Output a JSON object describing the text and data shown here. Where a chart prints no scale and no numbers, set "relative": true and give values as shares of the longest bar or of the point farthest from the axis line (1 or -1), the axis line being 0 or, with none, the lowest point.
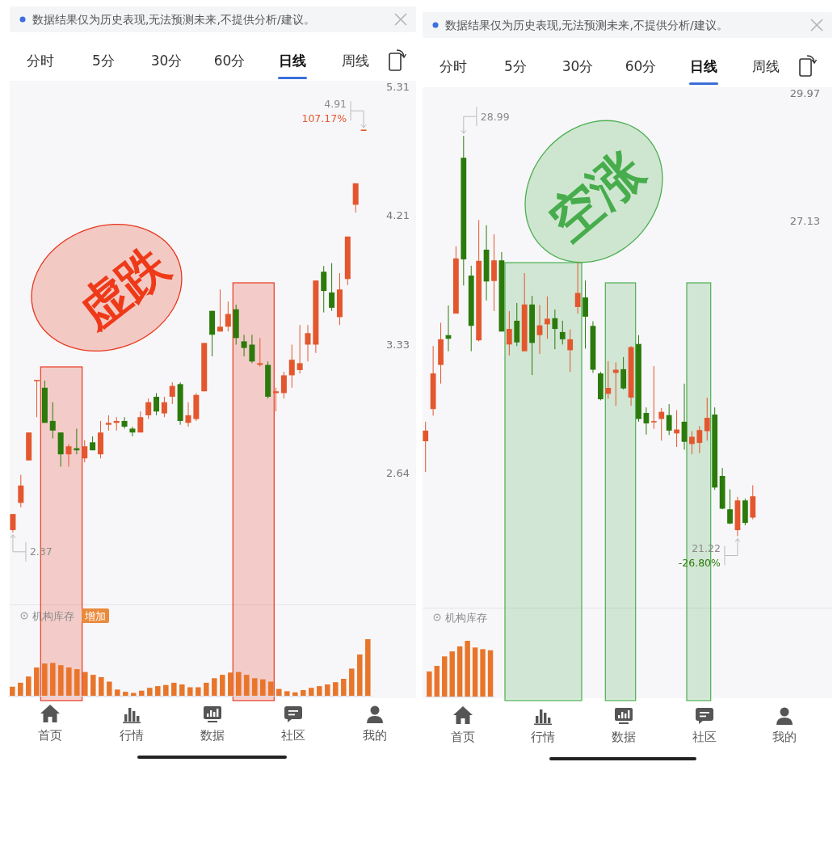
{
  "chart_data": [
    {
      "type": "other",
      "annotations": [
        "数据结果仅为历史表现,无法预测未来,不提供分析/建议。",
        "分时",
        "5分",
        "30分",
        "60分",
        "日线",
        "周线",
        "首页",
        "行情",
        "数据",
        "社区",
        "我的"
      ]
    },
    {
      "type": "candlestick",
      "categories": [
        null,
        null,
        null,
        null,
        null,
        null,
        null,
        null,
        null,
        null,
        null,
        null,
        null,
        null,
        null,
        null,
        null,
        null,
        null,
        null,
        null,
        null,
        null,
        null,
        null,
        null,
        null,
        null,
        null,
        null,
        null,
        null,
        null,
        null,
        null,
        null,
        null,
        null,
        null,
        null,
        null,
        null,
        null,
        null,
        null
      ],
      "ohlc": [
        [
          2.38,
          2.45,
          2.37,
          2.45
        ],
        [
          2.5,
          2.63,
          2.48,
          2.58
        ],
        [
          2.7,
          2.84,
          2.7,
          2.84
        ],
        [
          3.12,
          3.12,
          2.92,
          3.12
        ],
        [
          3.08,
          3.12,
          2.89,
          2.89
        ],
        [
          2.9,
          3.0,
          2.81,
          2.85
        ],
        [
          2.84,
          2.84,
          2.67,
          2.73
        ],
        [
          2.73,
          2.78,
          2.67,
          2.77
        ],
        [
          2.76,
          2.86,
          2.73,
          2.75
        ],
        [
          2.71,
          2.8,
          2.69,
          2.77
        ],
        [
          2.79,
          2.82,
          2.75,
          2.75
        ],
        [
          2.73,
          2.9,
          2.71,
          2.84
        ],
        [
          2.88,
          2.93,
          2.85,
          2.89
        ],
        [
          2.89,
          2.92,
          2.85,
          2.9
        ],
        [
          2.9,
          2.92,
          2.86,
          2.87
        ],
        [
          2.86,
          2.87,
          2.82,
          2.84
        ],
        [
          2.84,
          2.95,
          2.84,
          2.92
        ],
        [
          2.93,
          3.02,
          2.91,
          3.0
        ],
        [
          3.03,
          3.05,
          2.93,
          2.95
        ],
        [
          2.94,
          3.03,
          2.92,
          3.0
        ],
        [
          3.03,
          3.11,
          2.99,
          3.09
        ],
        [
          3.1,
          3.11,
          2.88,
          2.9
        ],
        [
          2.89,
          3.0,
          2.87,
          2.93
        ],
        [
          2.91,
          3.05,
          2.9,
          3.04
        ],
        [
          3.06,
          3.34,
          3.06,
          3.34
        ],
        [
          3.54,
          3.54,
          3.26,
          3.39
        ],
        [
          3.41,
          3.68,
          3.41,
          3.44
        ],
        [
          3.44,
          3.6,
          3.41,
          3.52
        ],
        [
          3.55,
          3.58,
          3.33,
          3.37
        ],
        [
          3.35,
          3.39,
          3.26,
          3.31
        ],
        [
          3.33,
          3.39,
          3.22,
          3.23
        ],
        [
          3.21,
          3.37,
          3.2,
          3.22
        ],
        [
          3.21,
          3.23,
          3.02,
          3.03
        ],
        [
          3.05,
          3.08,
          2.95,
          3.06
        ],
        [
          3.05,
          3.17,
          3.02,
          3.15
        ],
        [
          3.15,
          3.33,
          3.08,
          3.24
        ],
        [
          3.18,
          3.45,
          3.16,
          3.22
        ],
        [
          3.33,
          3.45,
          3.23,
          3.4
        ],
        [
          3.33,
          3.74,
          3.28,
          3.74
        ],
        [
          3.8,
          3.84,
          3.53,
          3.67
        ],
        [
          3.66,
          3.86,
          3.54,
          3.56
        ],
        [
          3.5,
          3.79,
          3.45,
          3.68
        ],
        [
          3.75,
          4.05,
          3.71,
          4.05
        ],
        [
          4.29,
          4.46,
          4.23,
          4.46
        ],
        [
          4.91,
          4.91,
          4.91,
          4.91
        ]
      ],
      "colors": [
        "#e4572e",
        "#e4572e",
        "#e4572e",
        "#e4572e",
        "#2b7a0b",
        "#2b7a0b",
        "#2b7a0b",
        "#e4572e",
        "#2b7a0b",
        "#e4572e",
        "#2b7a0b",
        "#e4572e",
        "#e4572e",
        "#e4572e",
        "#2b7a0b",
        "#2b7a0b",
        "#e4572e",
        "#e4572e",
        "#2b7a0b",
        "#e4572e",
        "#e4572e",
        "#2b7a0b",
        "#e4572e",
        "#e4572e",
        "#e4572e",
        "#2b7a0b",
        "#e4572e",
        "#e4572e",
        "#2b7a0b",
        "#2b7a0b",
        "#2b7a0b",
        "#e4572e",
        "#2b7a0b",
        "#e4572e",
        "#e4572e",
        "#e4572e",
        "#e4572e",
        "#e4572e",
        "#e4572e",
        "#2b7a0b",
        "#2b7a0b",
        "#e4572e",
        "#e4572e",
        "#e4572e",
        "#e4572e"
      ],
      "log": true,
      "ylim": [
        2.08,
        5.37
      ],
      "yticks": [
        2.64,
        3.33,
        4.21,
        5.31
      ],
      "tick_labels": "y",
      "annotations": [
        "4.91",
        "2.37",
        "107.17%",
        "虚跌"
      ]
    },
    {
      "type": "bar",
      "title": "机构库存",
      "categories": [
        null,
        null,
        null,
        null,
        null,
        null,
        null,
        null,
        null,
        null,
        null,
        null,
        null,
        null,
        null,
        null,
        null,
        null,
        null,
        null,
        null,
        null,
        null,
        null,
        null,
        null,
        null,
        null,
        null,
        null,
        null,
        null,
        null,
        null,
        null,
        null,
        null,
        null,
        null,
        null,
        null,
        null,
        null,
        null,
        null
      ],
      "values": [
        0.16,
        0.23,
        0.34,
        0.5,
        0.57,
        0.58,
        0.54,
        0.5,
        0.47,
        0.42,
        0.37,
        0.33,
        0.25,
        0.11,
        0.07,
        0.05,
        0.09,
        0.14,
        0.17,
        0.19,
        0.23,
        0.2,
        0.15,
        0.15,
        0.23,
        0.31,
        0.37,
        0.41,
        0.42,
        0.37,
        0.31,
        0.29,
        0.25,
        0.12,
        0.08,
        0.06,
        0.1,
        0.14,
        0.17,
        0.2,
        0.24,
        0.3,
        0.48,
        0.73,
        1
      ],
      "relative": true,
      "color": "#e8752a",
      "annotations": [
        "增加"
      ]
    },
    {
      "type": "other",
      "annotations": [
        "数据结果仅为历史表现,无法预测未来,不提供分析/建议。",
        "分时",
        "5分",
        "30分",
        "60分",
        "日线",
        "周线",
        "首页",
        "行情",
        "数据",
        "社区",
        "我的"
      ]
    },
    {
      "type": "candlestick",
      "categories": [
        null,
        null,
        null,
        null,
        null,
        null,
        null,
        null,
        null,
        null,
        null,
        null,
        null,
        null,
        null,
        null,
        null,
        null,
        null,
        null,
        null,
        null,
        null,
        null,
        null,
        null,
        null,
        null,
        null,
        null,
        null,
        null,
        null,
        null,
        null,
        null,
        null,
        null,
        null,
        null,
        null,
        null,
        null,
        null
      ],
      "ohlc": [
        [
          22.85,
          23.2,
          22.31,
          23.04
        ],
        [
          23.43,
          24.61,
          23.31,
          24.09
        ],
        [
          24.25,
          25.06,
          23.9,
          24.74
        ],
        [
          24.82,
          25.4,
          24.51,
          24.75
        ],
        [
          25.24,
          26.6,
          25.24,
          26.35
        ],
        [
          28.5,
          28.99,
          25.8,
          26.33
        ],
        [
          26.0,
          26.2,
          24.51,
          25.0
        ],
        [
          24.72,
          27.15,
          24.7,
          26.3
        ],
        [
          26.53,
          27.04,
          25.5,
          25.88
        ],
        [
          25.89,
          26.85,
          25.29,
          26.31
        ],
        [
          26.31,
          26.48,
          24.89,
          24.89
        ],
        [
          24.64,
          25.29,
          24.43,
          24.94
        ],
        [
          25.1,
          25.45,
          24.61,
          24.68
        ],
        [
          24.51,
          26.05,
          24.51,
          25.42
        ],
        [
          25.42,
          25.59,
          24.06,
          24.67
        ],
        [
          24.82,
          25.41,
          24.46,
          25.01
        ],
        [
          25.03,
          25.58,
          24.75,
          25.14
        ],
        [
          25.15,
          25.32,
          24.55,
          24.94
        ],
        [
          24.88,
          25.1,
          24.64,
          24.74
        ],
        [
          24.53,
          24.93,
          24.12,
          24.74
        ],
        [
          25.37,
          26.27,
          25.24,
          25.65
        ],
        [
          25.56,
          25.9,
          24.56,
          25.18
        ],
        [
          25.0,
          25.09,
          24.1,
          24.16
        ],
        [
          24.09,
          24.12,
          23.59,
          23.61
        ],
        [
          23.71,
          24.32,
          23.62,
          23.82
        ],
        [
          24.1,
          24.3,
          23.49,
          24.16
        ],
        [
          24.17,
          24.4,
          23.79,
          23.81
        ],
        [
          23.64,
          24.61,
          23.49,
          24.59
        ],
        [
          24.65,
          24.82,
          23.2,
          23.25
        ],
        [
          23.36,
          23.46,
          22.97,
          23.17
        ],
        [
          23.19,
          24.23,
          23.07,
          23.2
        ],
        [
          23.25,
          23.45,
          22.86,
          23.38
        ],
        [
          23.32,
          23.52,
          22.96,
          23.04
        ],
        [
          22.99,
          23.41,
          22.75,
          23.06
        ],
        [
          23.2,
          23.9,
          22.7,
          22.84
        ],
        [
          22.8,
          23.03,
          22.62,
          22.93
        ],
        [
          22.82,
          23.12,
          22.64,
          23.05
        ],
        [
          23.03,
          23.64,
          22.86,
          23.27
        ],
        [
          23.33,
          23.46,
          22.0,
          22.04
        ],
        [
          22.24,
          22.38,
          21.67,
          21.68
        ],
        [
          21.67,
          22.01,
          21.42,
          21.43
        ],
        [
          21.32,
          21.88,
          21.22,
          21.82
        ],
        [
          21.82,
          21.85,
          21.4,
          21.44
        ],
        [
          21.53,
          22.08,
          21.5,
          21.89
        ]
      ],
      "colors": [
        "#e4572e",
        "#e4572e",
        "#e4572e",
        "#2b7a0b",
        "#e4572e",
        "#2b7a0b",
        "#2b7a0b",
        "#e4572e",
        "#2b7a0b",
        "#e4572e",
        "#2b7a0b",
        "#e4572e",
        "#2b7a0b",
        "#e4572e",
        "#2b7a0b",
        "#e4572e",
        "#e4572e",
        "#2b7a0b",
        "#2b7a0b",
        "#e4572e",
        "#e4572e",
        "#2b7a0b",
        "#2b7a0b",
        "#2b7a0b",
        "#e4572e",
        "#e4572e",
        "#2b7a0b",
        "#e4572e",
        "#2b7a0b",
        "#2b7a0b",
        "#e4572e",
        "#e4572e",
        "#2b7a0b",
        "#e4572e",
        "#2b7a0b",
        "#e4572e",
        "#e4572e",
        "#e4572e",
        "#2b7a0b",
        "#2b7a0b",
        "#2b7a0b",
        "#e4572e",
        "#2b7a0b",
        "#e4572e"
      ],
      "log": true,
      "ylim": [
        20.07,
        30.11
      ],
      "yticks": [
        27.13,
        29.97
      ],
      "tick_labels": "y",
      "annotations": [
        "28.99",
        "21.22",
        "-26.80%",
        "空涨"
      ]
    },
    {
      "type": "bar",
      "title": "机构库存",
      "categories": [
        null,
        null,
        null,
        null,
        null,
        null,
        null,
        null,
        null
      ],
      "values": [
        0.45,
        0.55,
        0.72,
        0.81,
        0.9,
        1,
        0.88,
        0.85,
        0.83
      ],
      "relative": true,
      "color": "#e8752a"
    }
  ]
}
